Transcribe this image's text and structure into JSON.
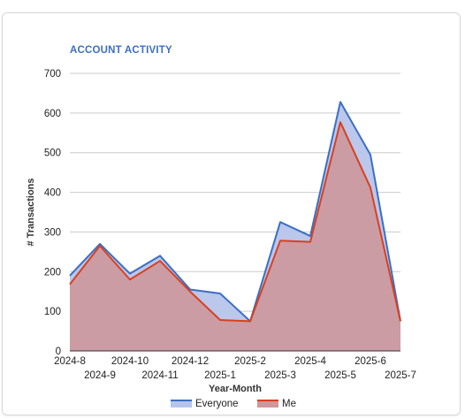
{
  "chart_data": {
    "type": "area",
    "title": "ACCOUNT ACTIVITY",
    "xlabel": "Year-Month",
    "ylabel": "# Transactions",
    "ylim": [
      0,
      700
    ],
    "yticks": [
      "0",
      "100",
      "200",
      "300",
      "400",
      "500",
      "600",
      "700"
    ],
    "categories": [
      "2024-8",
      "2024-9",
      "2024-10",
      "2024-11",
      "2024-12",
      "2025-1",
      "2025-2",
      "2025-3",
      "2025-4",
      "2025-5",
      "2025-6",
      "2025-7"
    ],
    "grid": true,
    "legend": "bottom",
    "series": [
      {
        "name": "Everyone",
        "color": "#3b6fc4",
        "fill": "#b7c4ea",
        "values": [
          190,
          270,
          195,
          240,
          155,
          145,
          75,
          325,
          290,
          628,
          495,
          75
        ]
      },
      {
        "name": "Me",
        "color": "#d9401f",
        "fill": "#cd979c",
        "values": [
          168,
          265,
          180,
          227,
          150,
          78,
          75,
          278,
          275,
          577,
          412,
          75
        ]
      }
    ]
  }
}
